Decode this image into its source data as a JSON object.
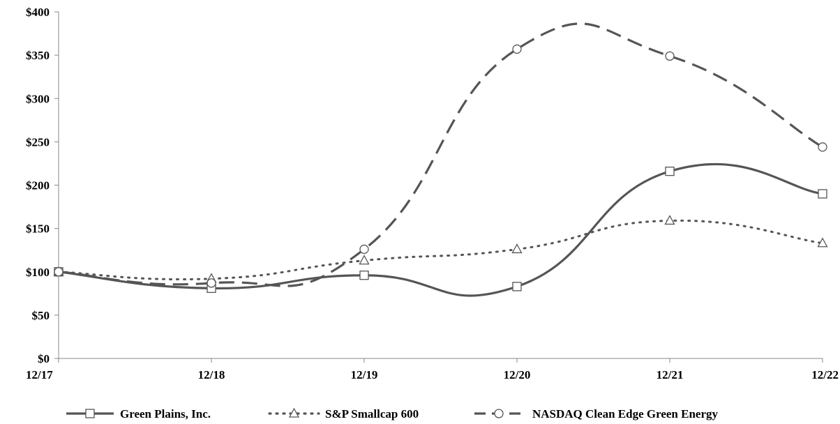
{
  "chart_data": {
    "type": "line",
    "categories": [
      "12/17",
      "12/18",
      "12/19",
      "12/20",
      "12/21",
      "12/22"
    ],
    "y_ticks": [
      "$0",
      "$50",
      "$100",
      "$150",
      "$200",
      "$250",
      "$300",
      "$350",
      "$400"
    ],
    "ylim": [
      0,
      400
    ],
    "grid": false,
    "legend_position": "bottom",
    "series": [
      {
        "name": "Green Plains, Inc.",
        "values": [
          100,
          81,
          96,
          83,
          216,
          190
        ],
        "color": "#555555",
        "line_style": "solid",
        "marker": "square"
      },
      {
        "name": "S&P Smallcap 600",
        "values": [
          100,
          92,
          113,
          126,
          159,
          133
        ],
        "color": "#555555",
        "line_style": "dotted",
        "marker": "triangle"
      },
      {
        "name": "NASDAQ Clean Edge Green Energy",
        "values": [
          100,
          87,
          126,
          357,
          349,
          244
        ],
        "color": "#555555",
        "line_style": "dashed",
        "marker": "circle"
      }
    ]
  }
}
